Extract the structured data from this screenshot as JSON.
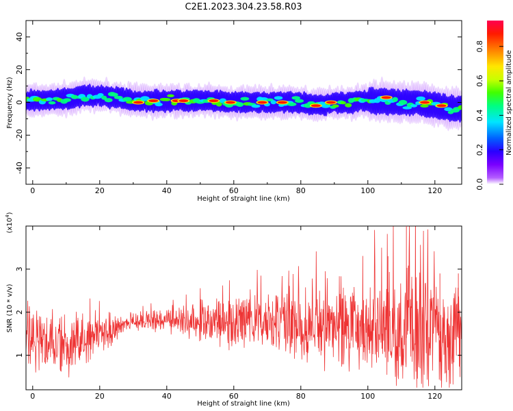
{
  "title": "C2E1.2023.304.23.58.R03",
  "colors": {
    "snr_line": "#ee3333",
    "colormap": [
      "#ffffff",
      "#b35cff",
      "#7a00ff",
      "#2a00ff",
      "#0060ff",
      "#00e5ff",
      "#00ff80",
      "#40ff00",
      "#c8ff00",
      "#ffe600",
      "#ff8000",
      "#ff1a00",
      "#ff0050"
    ]
  },
  "chart_data": [
    {
      "type": "heatmap",
      "xlabel": "Height of straight line (km)",
      "ylabel": "Frequency (Hz)",
      "xlim": [
        -2,
        128
      ],
      "ylim": [
        -50,
        50
      ],
      "x_ticks": [
        "0",
        "20",
        "40",
        "60",
        "80",
        "100",
        "120"
      ],
      "y_ticks": [
        "40",
        "20",
        "0",
        "-20",
        "-40"
      ],
      "colorbar": {
        "label": "Normalized spectral amplitude",
        "range": [
          0,
          0.95
        ],
        "ticks": [
          "0.0",
          "0.2",
          "0.4",
          "0.6",
          "0.8"
        ]
      },
      "band_center_hz": [
        [
          0,
          1
        ],
        [
          10,
          2
        ],
        [
          15,
          4
        ],
        [
          20,
          4
        ],
        [
          25,
          3
        ],
        [
          30,
          1
        ],
        [
          40,
          1
        ],
        [
          50,
          1
        ],
        [
          60,
          0
        ],
        [
          70,
          0
        ],
        [
          80,
          0
        ],
        [
          85,
          -2
        ],
        [
          90,
          0
        ],
        [
          95,
          0
        ],
        [
          100,
          1
        ],
        [
          105,
          1
        ],
        [
          110,
          0
        ],
        [
          115,
          0
        ],
        [
          120,
          -2
        ],
        [
          125,
          -4
        ],
        [
          128,
          -4
        ]
      ],
      "band_halfwidth_hz": 7,
      "peaks_near_0p9": [
        [
          31.5,
          0
        ],
        [
          36,
          1
        ],
        [
          43,
          1
        ],
        [
          45,
          1
        ],
        [
          54,
          1
        ],
        [
          59,
          0
        ],
        [
          68.5,
          0
        ],
        [
          74.5,
          0
        ],
        [
          84.5,
          -2
        ],
        [
          89,
          0
        ],
        [
          105.5,
          3
        ],
        [
          117,
          0
        ],
        [
          122,
          -2
        ]
      ]
    },
    {
      "type": "line",
      "xlabel": "Height of straight line (km)",
      "ylabel": "SNR (10 * v/v)",
      "y_multiplier": "(x10^4)",
      "xlim": [
        -2,
        128
      ],
      "ylim": [
        0.2,
        4.0
      ],
      "x_ticks": [
        "0",
        "20",
        "40",
        "60",
        "80",
        "100",
        "120"
      ],
      "y_ticks": [
        "1",
        "2",
        "3"
      ],
      "series": [
        {
          "values_profile": [
            {
              "x": 0,
              "mean": 1.3,
              "spread": 0.8
            },
            {
              "x": 10,
              "mean": 1.2,
              "spread": 0.8
            },
            {
              "x": 20,
              "mean": 1.5,
              "spread": 0.6
            },
            {
              "x": 28,
              "mean": 1.75,
              "spread": 0.2
            },
            {
              "x": 40,
              "mean": 1.8,
              "spread": 0.3
            },
            {
              "x": 50,
              "mean": 1.8,
              "spread": 0.6
            },
            {
              "x": 60,
              "mean": 1.75,
              "spread": 0.7
            },
            {
              "x": 70,
              "mean": 1.8,
              "spread": 0.8
            },
            {
              "x": 80,
              "mean": 1.7,
              "spread": 1.0
            },
            {
              "x": 90,
              "mean": 1.7,
              "spread": 1.1
            },
            {
              "x": 100,
              "mean": 1.6,
              "spread": 1.3
            },
            {
              "x": 110,
              "mean": 1.6,
              "spread": 1.6
            },
            {
              "x": 120,
              "mean": 1.5,
              "spread": 1.6
            },
            {
              "x": 128,
              "mean": 1.5,
              "spread": 1.5
            }
          ],
          "notable_peaks": [
            [
              106,
              3.3
            ],
            [
              111.5,
              4.0
            ],
            [
              121.5,
              2.9
            ],
            [
              127,
              2.9
            ]
          ]
        }
      ]
    }
  ]
}
